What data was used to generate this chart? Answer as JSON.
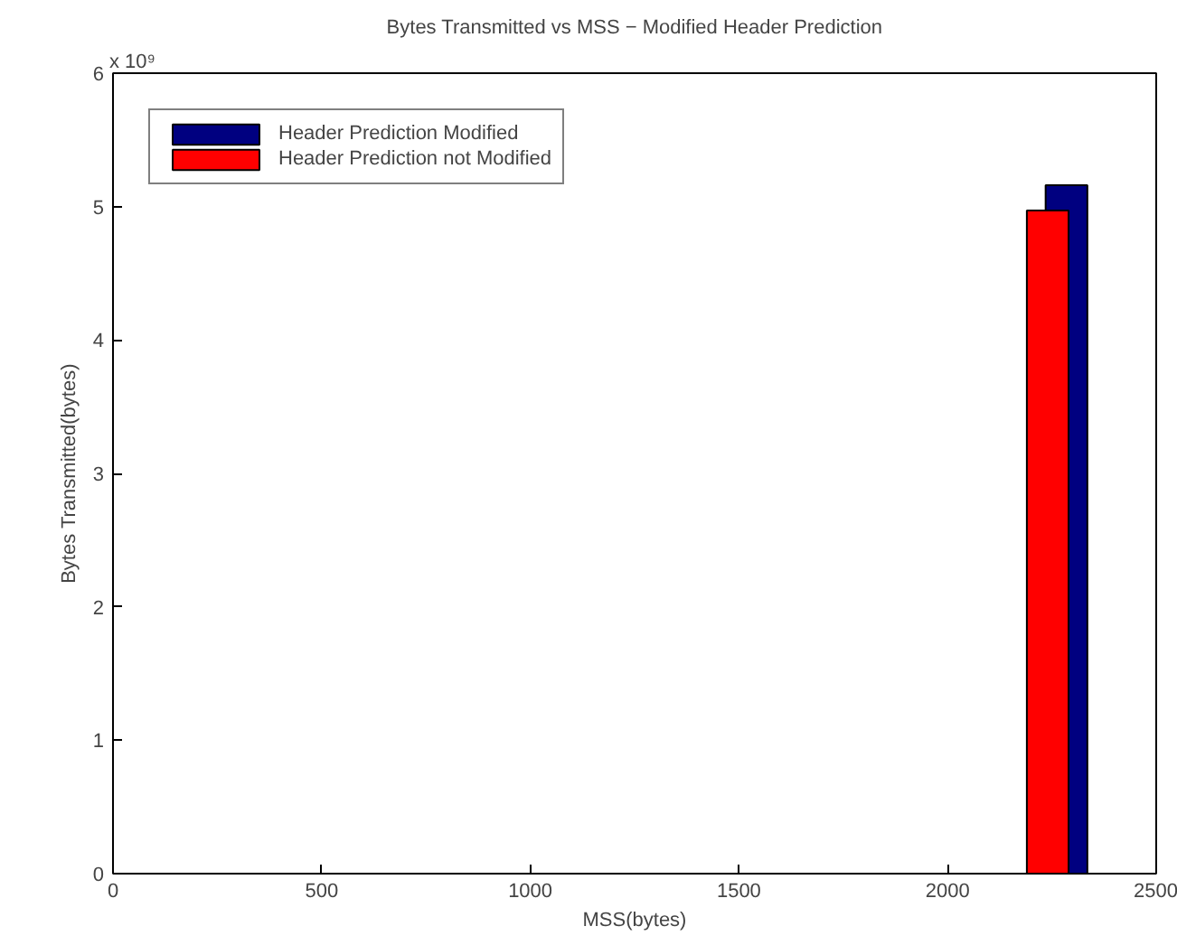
{
  "chart_data": {
    "type": "bar",
    "title": "Bytes Transmitted vs MSS − Modified Header Prediction",
    "xlabel": "MSS(bytes)",
    "ylabel": "Bytes Transmitted(bytes)",
    "annotations": [
      "x 10⁹"
    ],
    "series": [
      {
        "name": "Header Prediction Modified",
        "color": "#000080",
        "x": [
          2285
        ],
        "values": [
          5.16
        ]
      },
      {
        "name": "Header Prediction not Modified",
        "color": "#ff0000",
        "x": [
          2240
        ],
        "values": [
          4.97
        ]
      }
    ],
    "xlim": [
      0,
      2500
    ],
    "xticks": [
      0,
      500,
      1000,
      1500,
      2000,
      2500
    ],
    "ylim": [
      0,
      6
    ],
    "yticks": [
      0,
      1,
      2,
      3,
      4,
      5,
      6
    ],
    "legend": "top left"
  }
}
